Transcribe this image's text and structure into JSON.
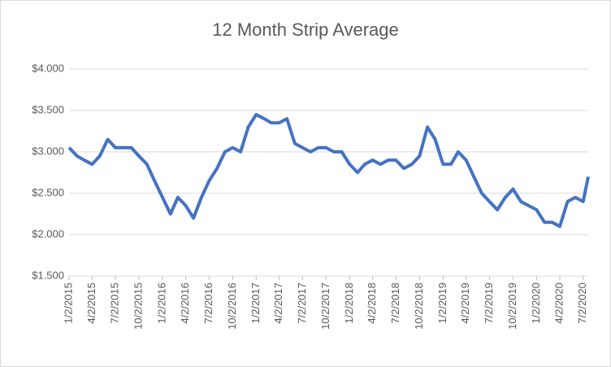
{
  "chart_data": {
    "type": "line",
    "title": "12 Month Strip Average",
    "x": [
      "1/2/2015",
      "2/2/2015",
      "3/2/2015",
      "4/2/2015",
      "5/2/2015",
      "6/2/2015",
      "7/2/2015",
      "8/2/2015",
      "9/2/2015",
      "10/2/2015",
      "11/2/2015",
      "12/2/2015",
      "1/2/2016",
      "2/2/2016",
      "3/2/2016",
      "4/2/2016",
      "5/2/2016",
      "6/2/2016",
      "7/2/2016",
      "8/2/2016",
      "9/2/2016",
      "10/2/2016",
      "11/2/2016",
      "12/2/2016",
      "1/2/2017",
      "2/2/2017",
      "3/2/2017",
      "4/2/2017",
      "5/2/2017",
      "6/2/2017",
      "7/2/2017",
      "8/2/2017",
      "9/2/2017",
      "10/2/2017",
      "11/2/2017",
      "12/2/2017",
      "1/2/2018",
      "2/2/2018",
      "3/2/2018",
      "4/2/2018",
      "5/2/2018",
      "6/2/2018",
      "7/2/2018",
      "8/2/2018",
      "9/2/2018",
      "10/2/2018",
      "11/2/2018",
      "12/2/2018",
      "1/2/2019",
      "2/2/2019",
      "3/2/2019",
      "4/2/2019",
      "5/2/2019",
      "6/2/2019",
      "7/2/2019",
      "8/2/2019",
      "9/2/2019",
      "10/2/2019",
      "11/2/2019",
      "12/2/2019",
      "1/2/2020",
      "2/2/2020",
      "3/2/2020",
      "4/2/2020",
      "5/2/2020",
      "6/2/2020",
      "7/2/2020",
      "7/22/2020"
    ],
    "series": [
      {
        "color": "#4472c4",
        "values": [
          3.05,
          2.95,
          2.9,
          2.85,
          2.95,
          3.15,
          3.05,
          3.05,
          3.05,
          2.95,
          2.85,
          2.65,
          2.45,
          2.25,
          2.45,
          2.35,
          2.2,
          2.45,
          2.65,
          2.8,
          3.0,
          3.05,
          3.0,
          3.3,
          3.45,
          3.4,
          3.35,
          3.35,
          3.4,
          3.1,
          3.05,
          3.0,
          3.05,
          3.05,
          3.0,
          3.0,
          2.85,
          2.75,
          2.85,
          2.9,
          2.85,
          2.9,
          2.9,
          2.8,
          2.85,
          2.95,
          3.3,
          3.15,
          2.85,
          2.85,
          3.0,
          2.9,
          2.7,
          2.5,
          2.4,
          2.3,
          2.45,
          2.55,
          2.4,
          2.35,
          2.3,
          2.15,
          2.15,
          2.1,
          2.4,
          2.45,
          2.4,
          2.7
        ]
      }
    ],
    "xlim": [
      "1/2/2015",
      "7/22/2020"
    ],
    "xticks": [
      "1/2/2015",
      "4/2/2015",
      "7/2/2015",
      "10/2/2015",
      "1/2/2016",
      "4/2/2016",
      "7/2/2016",
      "10/2/2016",
      "1/2/2017",
      "4/2/2017",
      "7/2/2017",
      "10/2/2017",
      "1/2/2018",
      "4/2/2018",
      "7/2/2018",
      "10/2/2018",
      "1/2/2019",
      "4/2/2019",
      "7/2/2019",
      "10/2/2019",
      "1/2/2020",
      "4/2/2020",
      "7/2/2020"
    ],
    "ylim": [
      1.5,
      4
    ],
    "yticks": [
      {
        "value": 1.5,
        "label": "$1.500"
      },
      {
        "value": 2,
        "label": "$2.000"
      },
      {
        "value": 2.5,
        "label": "$2.500"
      },
      {
        "value": 3,
        "label": "$3.000"
      },
      {
        "value": 3.5,
        "label": "$3.500"
      },
      {
        "value": 4,
        "label": "$4.000"
      }
    ],
    "grid": true
  }
}
